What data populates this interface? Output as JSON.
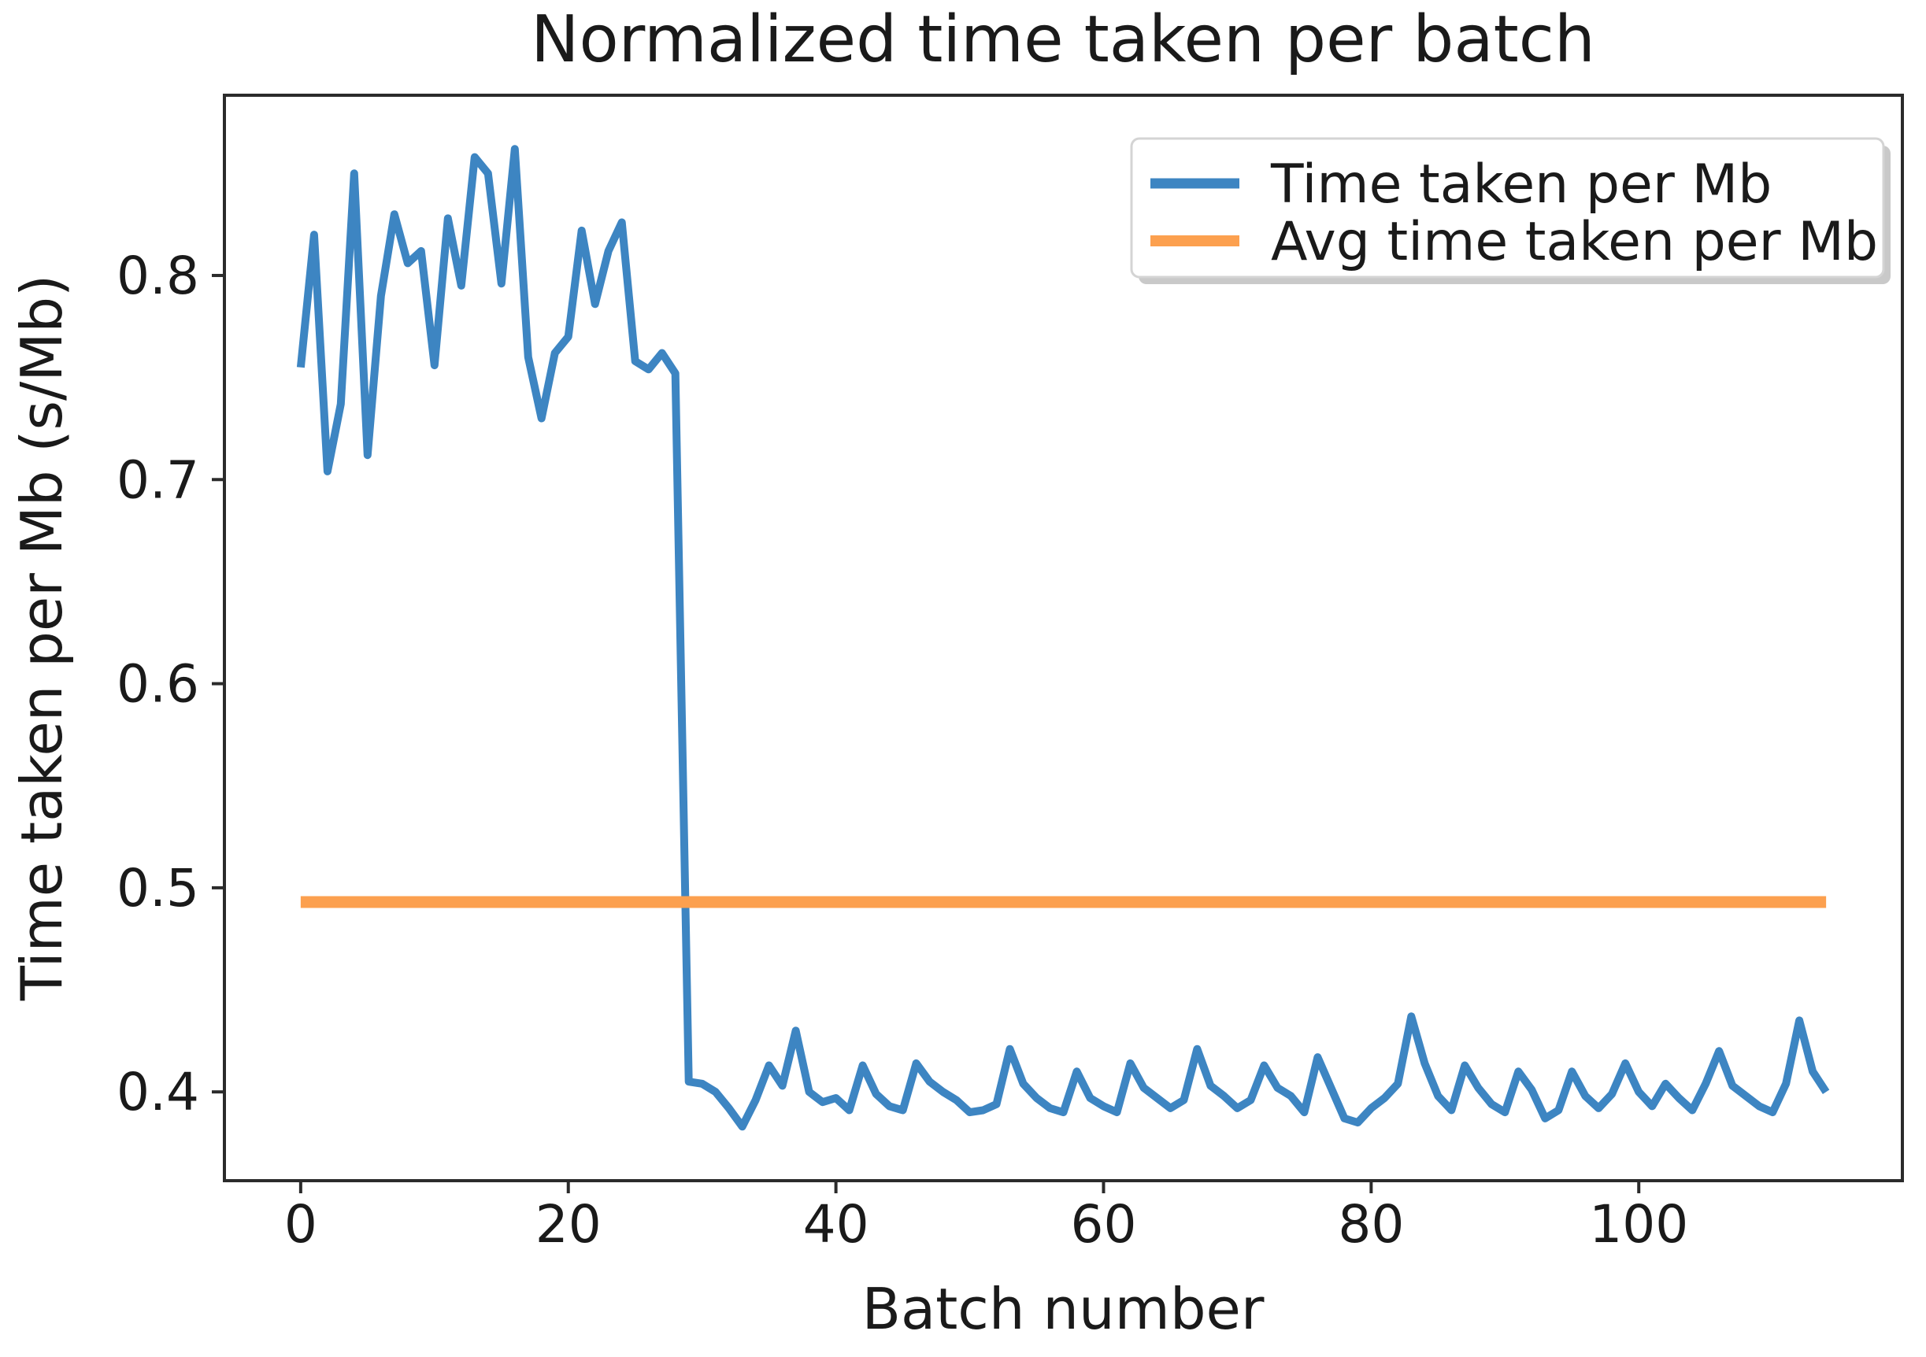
{
  "figure": {
    "background": "#ffffff",
    "spine_color": "#2b2b2b",
    "text_color": "#1a1a1a"
  },
  "chart_data": {
    "type": "line",
    "title": "Normalized time taken per batch",
    "xlabel": "Batch number",
    "ylabel": "Time taken per Mb (s/Mb)",
    "grid": false,
    "legend_position": "upper right",
    "xlim": [
      -5.7,
      119.7
    ],
    "ylim": [
      0.3565,
      0.8883
    ],
    "x_ticks": [
      0,
      20,
      40,
      60,
      80,
      100
    ],
    "y_ticks": [
      0.4,
      0.5,
      0.6,
      0.7,
      0.8
    ],
    "series": [
      {
        "name": "Time taken per Mb",
        "color": "#3d85c2",
        "x_start": 0,
        "x_step": 1,
        "values": [
          0.755,
          0.82,
          0.704,
          0.737,
          0.85,
          0.712,
          0.79,
          0.83,
          0.806,
          0.812,
          0.756,
          0.828,
          0.795,
          0.858,
          0.85,
          0.796,
          0.862,
          0.76,
          0.73,
          0.762,
          0.77,
          0.822,
          0.786,
          0.812,
          0.826,
          0.758,
          0.754,
          0.762,
          0.752,
          0.405,
          0.404,
          0.4,
          0.392,
          0.383,
          0.396,
          0.413,
          0.403,
          0.43,
          0.4,
          0.395,
          0.397,
          0.391,
          0.413,
          0.399,
          0.393,
          0.391,
          0.414,
          0.405,
          0.4,
          0.396,
          0.39,
          0.391,
          0.394,
          0.421,
          0.404,
          0.397,
          0.392,
          0.39,
          0.41,
          0.397,
          0.393,
          0.39,
          0.414,
          0.402,
          0.397,
          0.392,
          0.396,
          0.421,
          0.403,
          0.398,
          0.392,
          0.396,
          0.413,
          0.402,
          0.398,
          0.39,
          0.417,
          0.402,
          0.387,
          0.385,
          0.392,
          0.397,
          0.404,
          0.437,
          0.414,
          0.398,
          0.391,
          0.413,
          0.402,
          0.394,
          0.39,
          0.41,
          0.401,
          0.387,
          0.391,
          0.41,
          0.398,
          0.392,
          0.399,
          0.414,
          0.4,
          0.393,
          0.404,
          0.397,
          0.391,
          0.404,
          0.42,
          0.403,
          0.398,
          0.393,
          0.39,
          0.404,
          0.435,
          0.41,
          0.4
        ]
      },
      {
        "name": "Avg time taken per Mb",
        "color": "#fca04f",
        "avg_value": 0.493,
        "x_range": [
          0,
          114
        ]
      }
    ]
  }
}
